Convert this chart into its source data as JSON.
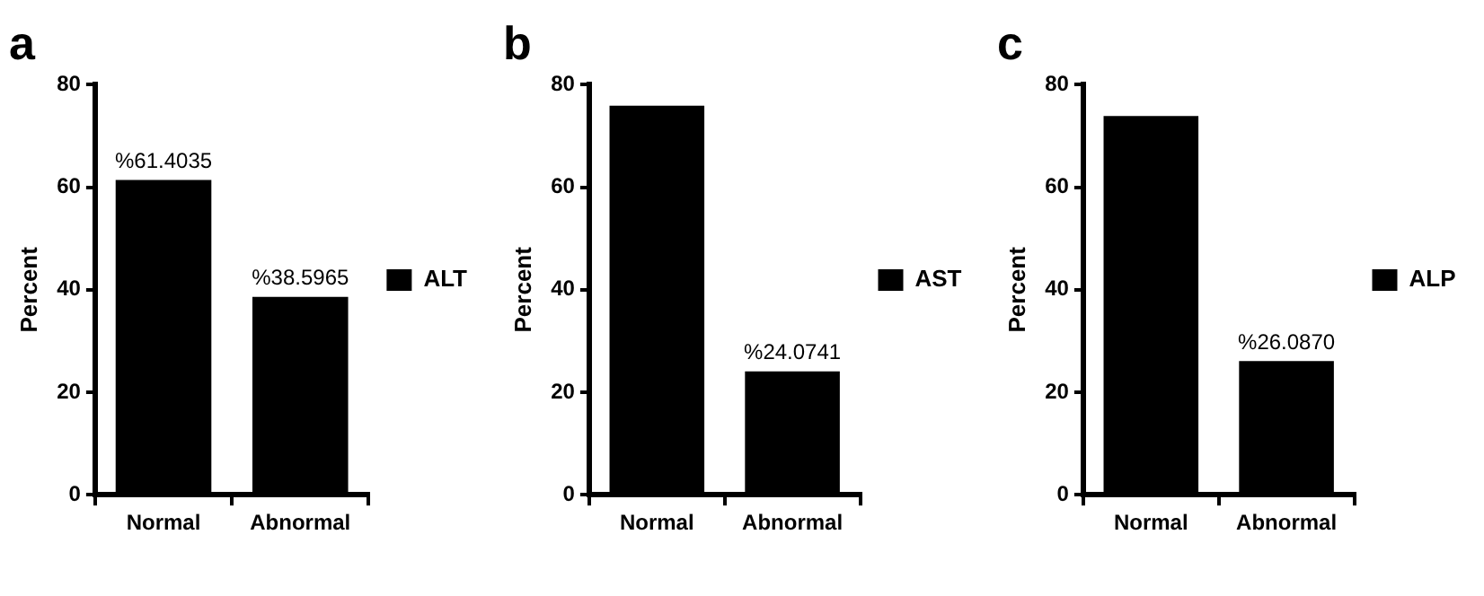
{
  "chart_data": [
    {
      "type": "bar",
      "title": "a",
      "ylabel": "Percent",
      "categories": [
        "Normal",
        "Abnormal"
      ],
      "ylim": [
        0,
        80
      ],
      "yticks": [
        0,
        20,
        40,
        60,
        80
      ],
      "legend": "right",
      "series": [
        {
          "name": "ALT",
          "color": "#000000",
          "values": [
            61.4035,
            38.5965
          ],
          "value_labels": [
            "%61.4035",
            "%38.5965"
          ]
        }
      ]
    },
    {
      "type": "bar",
      "title": "b",
      "ylabel": "Percent",
      "categories": [
        "Normal",
        "Abnormal"
      ],
      "ylim": [
        0,
        80
      ],
      "yticks": [
        0,
        20,
        40,
        60,
        80
      ],
      "legend": "right",
      "series": [
        {
          "name": "AST",
          "color": "#000000",
          "values": [
            75.9,
            24.0741
          ],
          "value_labels": [
            null,
            "%24.0741"
          ]
        }
      ]
    },
    {
      "type": "bar",
      "title": "c",
      "ylabel": "Percent",
      "categories": [
        "Normal",
        "Abnormal"
      ],
      "ylim": [
        0,
        80
      ],
      "yticks": [
        0,
        20,
        40,
        60,
        80
      ],
      "legend": "right",
      "series": [
        {
          "name": "ALP",
          "color": "#000000",
          "values": [
            73.9,
            26.087
          ],
          "value_labels": [
            null,
            "%26.0870"
          ]
        }
      ]
    }
  ]
}
